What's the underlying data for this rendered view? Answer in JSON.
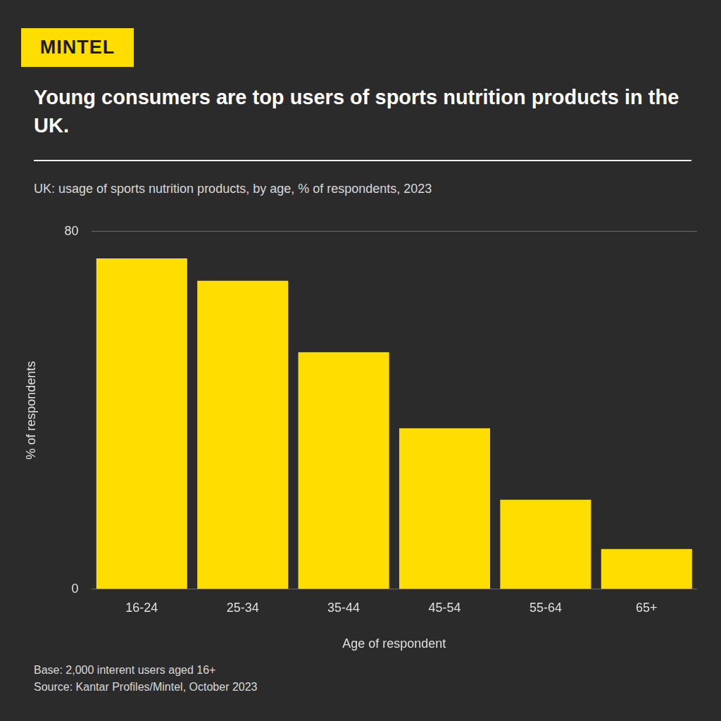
{
  "chart_data": {
    "type": "bar",
    "logo": "MINTEL",
    "title": "Young consumers are top users of sports nutrition products in the UK.",
    "subtitle": "UK: usage of sports nutrition products, by age, % of respondents, 2023",
    "x_label": "Age of respondent",
    "y_label": "% of respondents",
    "categories": [
      "16-24",
      "25-34",
      "35-44",
      "45-54",
      "55-64",
      "65+"
    ],
    "values": [
      74,
      69,
      53,
      36,
      20,
      9
    ],
    "color": "#ffdd00",
    "ylim": [
      0,
      80
    ],
    "yticks": [
      0,
      80
    ],
    "grid": true,
    "notes": [
      "Base: 2,000 interent users aged 16+",
      "Source: Kantar Profiles/Mintel, October 2023"
    ]
  }
}
